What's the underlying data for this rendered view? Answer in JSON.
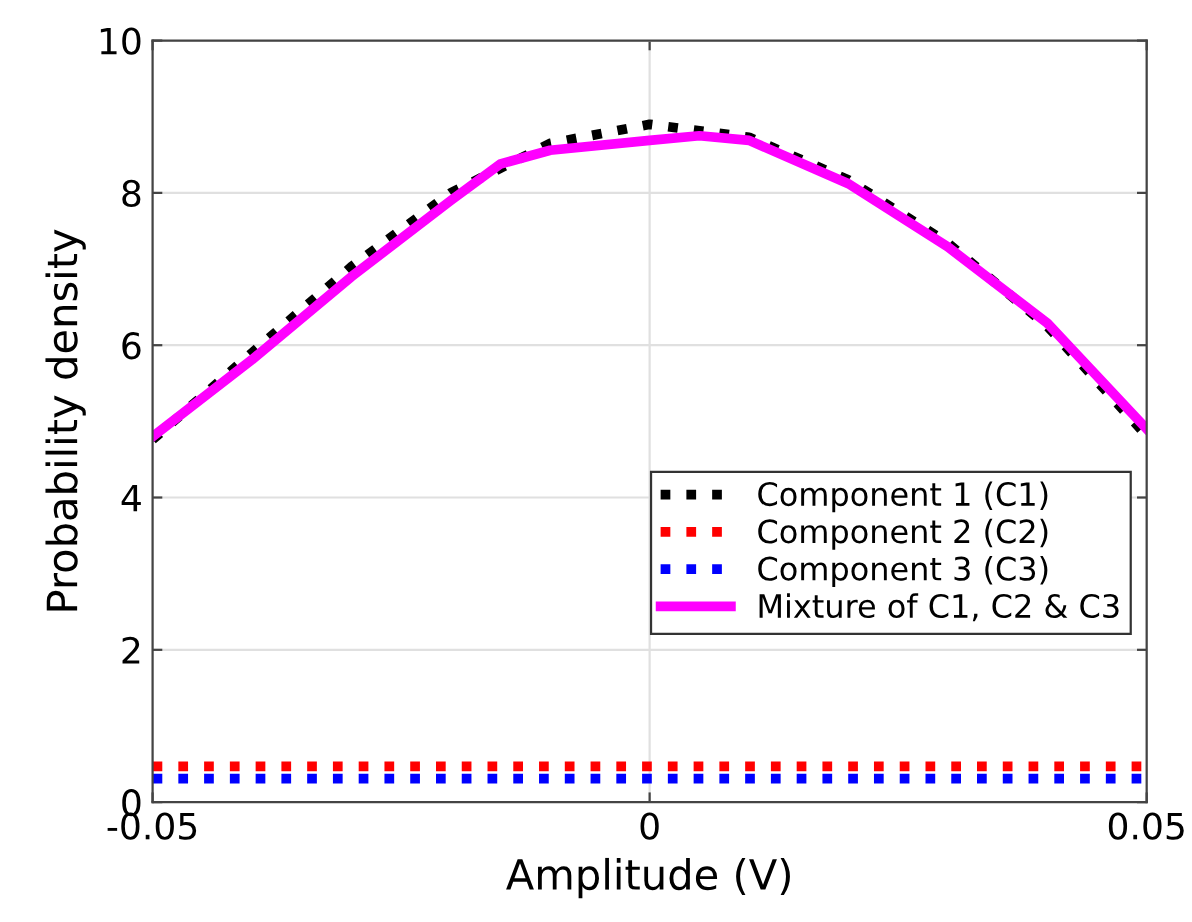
{
  "chart_data": {
    "type": "line",
    "xlabel": "Amplitude (V)",
    "ylabel": "Probability density",
    "xlim": [
      -0.05,
      0.05
    ],
    "xticks": [
      -0.05,
      0,
      0.05
    ],
    "ylim": [
      0,
      10
    ],
    "yticks": [
      0,
      2,
      4,
      6,
      8,
      10
    ],
    "grid": true,
    "legend": "bottom right",
    "series": [
      {
        "name": "Component 1 (C1)",
        "color": "#000000",
        "line_style": "dotted",
        "x": [
          -0.05,
          -0.04,
          -0.03,
          -0.02,
          -0.01,
          0,
          0.01,
          0.02,
          0.03,
          0.04,
          0.05
        ],
        "values": [
          4.76,
          5.9,
          7.03,
          8.0,
          8.65,
          8.9,
          8.73,
          8.17,
          7.34,
          6.25,
          4.81
        ]
      },
      {
        "name": "Component 2 (C2)",
        "color": "#ff0000",
        "line_style": "dotted",
        "x": [
          -0.05,
          0.05
        ],
        "values": [
          0.47,
          0.47
        ]
      },
      {
        "name": "Component 3 (C3)",
        "color": "#0000ff",
        "line_style": "dotted",
        "x": [
          -0.05,
          0.05
        ],
        "values": [
          0.31,
          0.31
        ]
      },
      {
        "name": "Mixture of C1, C2 & C3",
        "color": "#ff00ff",
        "line_style": "solid",
        "x": [
          -0.05,
          -0.04,
          -0.03,
          -0.02,
          -0.015,
          -0.01,
          0,
          0.005,
          0.01,
          0.02,
          0.03,
          0.04,
          0.05
        ],
        "values": [
          4.8,
          5.81,
          6.9,
          7.9,
          8.38,
          8.56,
          8.69,
          8.75,
          8.69,
          8.12,
          7.29,
          6.29,
          4.9
        ]
      }
    ]
  }
}
